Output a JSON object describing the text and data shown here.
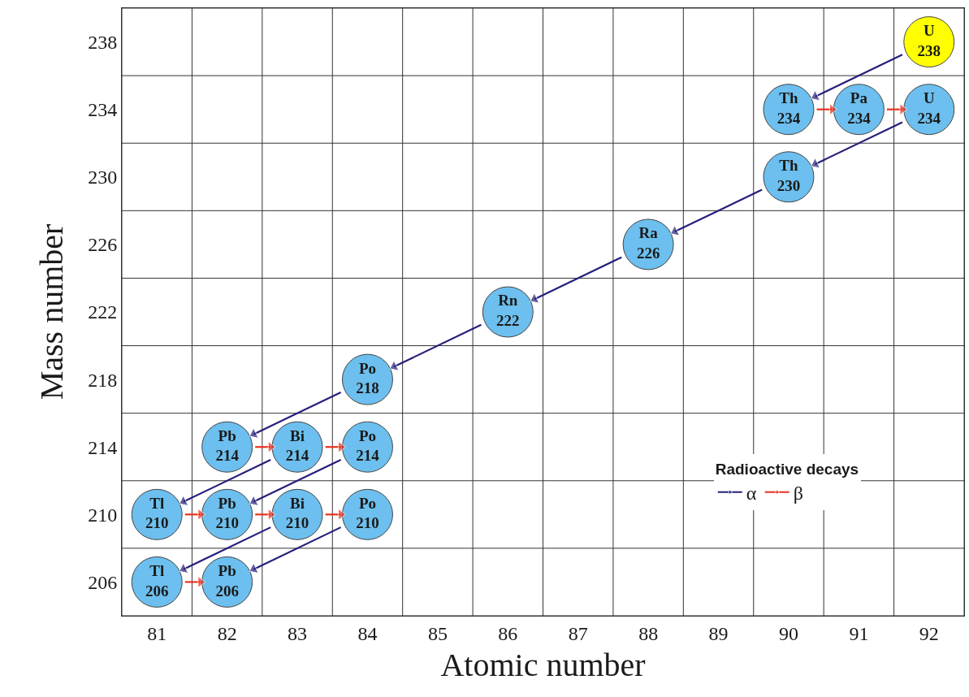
{
  "chart_data": {
    "type": "scatter",
    "xlabel": "Atomic number",
    "ylabel": "Mass number",
    "legend_title": "Radioactive decays",
    "legend": "bottom right",
    "grid": true,
    "marker": "circle",
    "xlim": [
      80.5,
      92.5
    ],
    "xticks": [
      81,
      82,
      83,
      84,
      85,
      86,
      87,
      88,
      89,
      90,
      91,
      92
    ],
    "ylim": [
      204,
      240
    ],
    "yticks": [
      206,
      210,
      214,
      218,
      222,
      226,
      230,
      234,
      238
    ],
    "series": [
      {
        "x": [
          92,
          90,
          91,
          92,
          90,
          88,
          86,
          84,
          82,
          83,
          84,
          81,
          82,
          83,
          84,
          81,
          82
        ],
        "values": [
          238,
          234,
          234,
          234,
          230,
          226,
          222,
          218,
          214,
          214,
          214,
          210,
          210,
          210,
          210,
          206,
          206
        ],
        "colors": [
          "#ffff00",
          "#6cbfee",
          "#6cbfee",
          "#6cbfee",
          "#6cbfee",
          "#6cbfee",
          "#6cbfee",
          "#6cbfee",
          "#6cbfee",
          "#6cbfee",
          "#6cbfee",
          "#6cbfee",
          "#6cbfee",
          "#6cbfee",
          "#6cbfee",
          "#6cbfee",
          "#6cbfee"
        ],
        "value_labels": [
          "U 238",
          "Th 234",
          "Pa 234",
          "U 234",
          "Th 230",
          "Ra 226",
          "Rn 222",
          "Po 218",
          "Pb 214",
          "Bi 214",
          "Po 214",
          "Tl 210",
          "Pb 210",
          "Bi 210",
          "Po 210",
          "Tl 206",
          "Pb 206"
        ]
      },
      {
        "type": "line",
        "name": "α",
        "color": "#241f7a",
        "marker": "triangle",
        "x": [
          91.62,
          90.38
        ],
        "values": [
          237.24,
          234.76
        ]
      },
      {
        "type": "line",
        "color": "#241f7a",
        "marker": "triangle",
        "x": [
          91.62,
          90.38
        ],
        "values": [
          233.24,
          230.76
        ]
      },
      {
        "type": "line",
        "color": "#241f7a",
        "marker": "triangle",
        "x": [
          89.62,
          88.38
        ],
        "values": [
          229.24,
          226.76
        ]
      },
      {
        "type": "line",
        "color": "#241f7a",
        "marker": "triangle",
        "x": [
          87.62,
          86.38
        ],
        "values": [
          225.24,
          222.76
        ]
      },
      {
        "type": "line",
        "color": "#241f7a",
        "marker": "triangle",
        "x": [
          85.62,
          84.38
        ],
        "values": [
          221.24,
          218.76
        ]
      },
      {
        "type": "line",
        "color": "#241f7a",
        "marker": "triangle",
        "x": [
          83.62,
          82.38
        ],
        "values": [
          217.24,
          214.76
        ]
      },
      {
        "type": "line",
        "color": "#241f7a",
        "marker": "triangle",
        "x": [
          82.62,
          81.38
        ],
        "values": [
          213.24,
          210.76
        ]
      },
      {
        "type": "line",
        "color": "#241f7a",
        "marker": "triangle",
        "x": [
          83.62,
          82.38
        ],
        "values": [
          213.24,
          210.76
        ]
      },
      {
        "type": "line",
        "color": "#241f7a",
        "marker": "triangle",
        "x": [
          82.62,
          81.38
        ],
        "values": [
          209.24,
          206.76
        ]
      },
      {
        "type": "line",
        "color": "#241f7a",
        "marker": "triangle",
        "x": [
          83.62,
          82.38
        ],
        "values": [
          209.24,
          206.76
        ]
      },
      {
        "type": "line",
        "name": "β",
        "color": "#e8321e",
        "marker": "triangle",
        "x": [
          90.4,
          90.62
        ],
        "values": [
          234,
          234
        ]
      },
      {
        "type": "line",
        "color": "#e8321e",
        "marker": "triangle",
        "x": [
          91.4,
          91.62
        ],
        "values": [
          234,
          234
        ]
      },
      {
        "type": "line",
        "color": "#e8321e",
        "marker": "triangle",
        "x": [
          82.4,
          82.62
        ],
        "values": [
          214,
          214
        ]
      },
      {
        "type": "line",
        "color": "#e8321e",
        "marker": "triangle",
        "x": [
          83.4,
          83.62
        ],
        "values": [
          214,
          214
        ]
      },
      {
        "type": "line",
        "color": "#e8321e",
        "marker": "triangle",
        "x": [
          81.4,
          81.62
        ],
        "values": [
          210,
          210
        ]
      },
      {
        "type": "line",
        "color": "#e8321e",
        "marker": "triangle",
        "x": [
          82.4,
          82.62
        ],
        "values": [
          210,
          210
        ]
      },
      {
        "type": "line",
        "color": "#e8321e",
        "marker": "triangle",
        "x": [
          83.4,
          83.62
        ],
        "values": [
          210,
          210
        ]
      },
      {
        "type": "line",
        "color": "#e8321e",
        "marker": "triangle",
        "x": [
          81.4,
          81.62
        ],
        "values": [
          206,
          206
        ]
      }
    ]
  }
}
